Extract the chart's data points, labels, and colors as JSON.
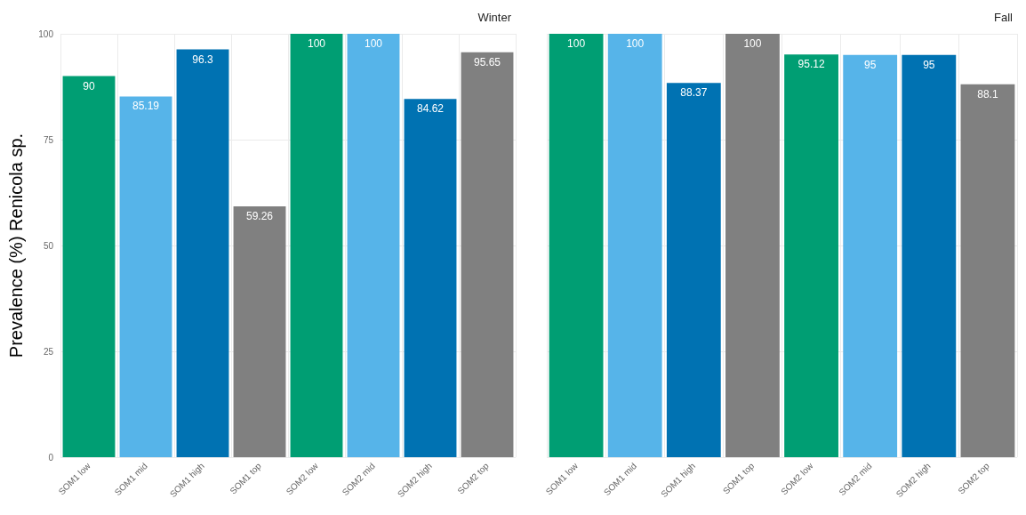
{
  "chart_data": [
    {
      "type": "bar",
      "title": "Winter",
      "ylabel": "Prevalence (%) Renicola sp.",
      "categories": [
        "SOM1 low",
        "SOM1 mid",
        "SOM1 high",
        "SOM1 top",
        "SOM2 low",
        "SOM2 mid",
        "SOM2 high",
        "SOM2 top"
      ],
      "values": [
        90,
        85.19,
        96.3,
        59.26,
        100,
        100,
        84.62,
        95.65
      ],
      "colors": [
        "#009e73",
        "#56b4e9",
        "#0072b2",
        "#808080",
        "#009e73",
        "#56b4e9",
        "#0072b2",
        "#808080"
      ],
      "ylim": [
        0,
        100
      ],
      "yticks": [
        0,
        25,
        50,
        75,
        100
      ],
      "grid": true,
      "data_labels": true
    },
    {
      "type": "bar",
      "title": "Fall",
      "categories": [
        "SOM1 low",
        "SOM1 mid",
        "SOM1 high",
        "SOM1 top",
        "SOM2 low",
        "SOM2 mid",
        "SOM2 high",
        "SOM2 top"
      ],
      "values": [
        100,
        100,
        88.37,
        100,
        95.12,
        95,
        95,
        88.1
      ],
      "colors": [
        "#009e73",
        "#56b4e9",
        "#0072b2",
        "#808080",
        "#009e73",
        "#56b4e9",
        "#0072b2",
        "#808080"
      ],
      "ylim": [
        0,
        100
      ],
      "yticks": [
        0,
        25,
        50,
        75,
        100
      ],
      "grid": true,
      "data_labels": true,
      "tick_labels": "x"
    }
  ]
}
